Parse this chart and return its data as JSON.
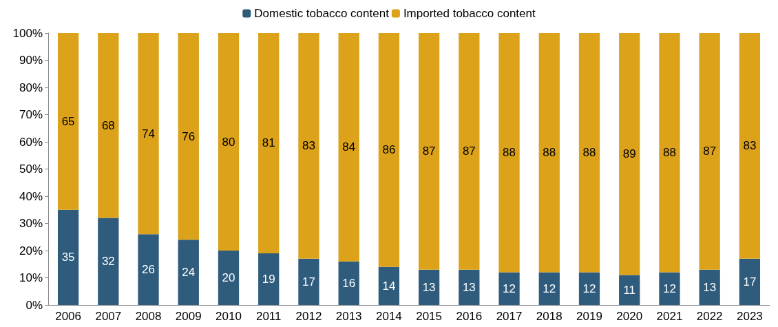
{
  "chart_data": {
    "type": "bar",
    "stacked": true,
    "data_labels": true,
    "legend": "top",
    "grid": false,
    "categories": [
      "2006",
      "2007",
      "2008",
      "2009",
      "2010",
      "2011",
      "2012",
      "2013",
      "2014",
      "2015",
      "2016",
      "2017",
      "2018",
      "2019",
      "2020",
      "2021",
      "2022",
      "2023"
    ],
    "ylim": [
      0,
      100
    ],
    "yticks": [
      {
        "value": 0,
        "label": "0%"
      },
      {
        "value": 10,
        "label": "10%"
      },
      {
        "value": 20,
        "label": "20%"
      },
      {
        "value": 30,
        "label": "30%"
      },
      {
        "value": 40,
        "label": "40%"
      },
      {
        "value": 50,
        "label": "50%"
      },
      {
        "value": 60,
        "label": "60%"
      },
      {
        "value": 70,
        "label": "70%"
      },
      {
        "value": 80,
        "label": "80%"
      },
      {
        "value": 90,
        "label": "90%"
      },
      {
        "value": 100,
        "label": "100%"
      }
    ],
    "series": [
      {
        "name": "Domestic tobacco content",
        "color": "#2f5b7c",
        "values": [
          35,
          32,
          26,
          24,
          20,
          19,
          17,
          16,
          14,
          13,
          13,
          12,
          12,
          12,
          11,
          12,
          13,
          17
        ]
      },
      {
        "name": "Imported tobacco content",
        "color": "#dba21a",
        "values": [
          65,
          68,
          74,
          76,
          80,
          81,
          83,
          84,
          86,
          87,
          87,
          88,
          88,
          88,
          89,
          88,
          87,
          83
        ]
      }
    ]
  }
}
